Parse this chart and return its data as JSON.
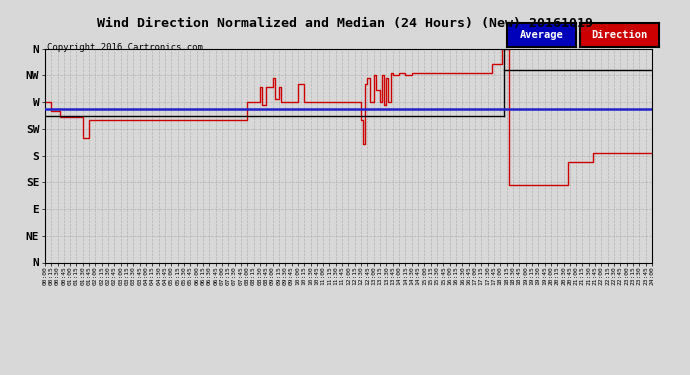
{
  "title": "Wind Direction Normalized and Median (24 Hours) (New) 20161019",
  "copyright": "Copyright 2016 Cartronics.com",
  "background_color": "#d8d8d8",
  "plot_bg_color": "#d8d8d8",
  "blue_line_y": 258,
  "ytick_labels": [
    "N",
    "NW",
    "W",
    "SW",
    "S",
    "SE",
    "E",
    "NE",
    "N"
  ],
  "ytick_values": [
    360,
    315,
    270,
    225,
    180,
    135,
    90,
    45,
    0
  ],
  "ylim": [
    0,
    360
  ],
  "legend_avg_bg": "#0000bb",
  "legend_dir_bg": "#cc0000",
  "red_line_color": "#cc0000",
  "blue_line_color": "#2222cc",
  "black_line_color": "#000000",
  "grid_color": "#aaaaaa",
  "red_x": [
    0,
    0.25,
    0.25,
    0.583,
    0.583,
    0.667,
    0.667,
    1.5,
    1.5,
    1.583,
    1.583,
    1.75,
    1.75,
    1.833,
    1.833,
    8.0,
    8.0,
    8.083,
    8.083,
    8.5,
    8.5,
    8.583,
    8.583,
    8.75,
    8.75,
    9.0,
    9.0,
    9.083,
    9.083,
    9.25,
    9.25,
    9.333,
    9.333,
    9.5,
    9.5,
    10.0,
    10.0,
    10.083,
    10.083,
    10.25,
    10.25,
    10.333,
    10.333,
    11.25,
    11.25,
    12.5,
    12.5,
    12.583,
    12.583,
    12.667,
    12.667,
    12.75,
    12.75,
    12.833,
    12.833,
    13.0,
    13.0,
    13.083,
    13.083,
    13.25,
    13.25,
    13.333,
    13.333,
    13.417,
    13.417,
    13.5,
    13.5,
    13.583,
    13.583,
    13.667,
    13.667,
    13.75,
    13.75,
    13.833,
    13.833,
    14.0,
    14.0,
    14.25,
    14.25,
    14.5,
    14.5,
    15.0,
    15.0,
    17.667,
    17.667,
    17.75,
    17.75,
    18.083,
    18.083,
    18.167,
    18.167,
    18.333,
    18.333,
    18.417,
    18.417,
    20.667,
    20.667,
    20.75,
    20.75,
    21.667,
    21.667,
    21.75,
    21.75,
    24.0
  ],
  "red_y": [
    270,
    270,
    255,
    255,
    245,
    245,
    245,
    245,
    210,
    210,
    210,
    210,
    240,
    240,
    240,
    240,
    270,
    270,
    270,
    270,
    295,
    295,
    265,
    265,
    295,
    295,
    310,
    310,
    275,
    275,
    295,
    295,
    270,
    270,
    270,
    270,
    300,
    300,
    300,
    300,
    270,
    270,
    270,
    270,
    270,
    270,
    240,
    240,
    200,
    200,
    300,
    300,
    310,
    310,
    270,
    270,
    315,
    315,
    290,
    290,
    270,
    270,
    315,
    315,
    265,
    265,
    310,
    310,
    270,
    270,
    320,
    320,
    315,
    315,
    315,
    315,
    320,
    320,
    315,
    315,
    320,
    320,
    320,
    320,
    335,
    335,
    335,
    335,
    360,
    360,
    360,
    360,
    130,
    130,
    130,
    130,
    170,
    170,
    170,
    170,
    185,
    185,
    185,
    185
  ],
  "black_x": [
    0,
    18.167,
    18.167,
    18.167,
    18.167,
    24.0
  ],
  "black_y": [
    247,
    247,
    247,
    360,
    325,
    325
  ]
}
